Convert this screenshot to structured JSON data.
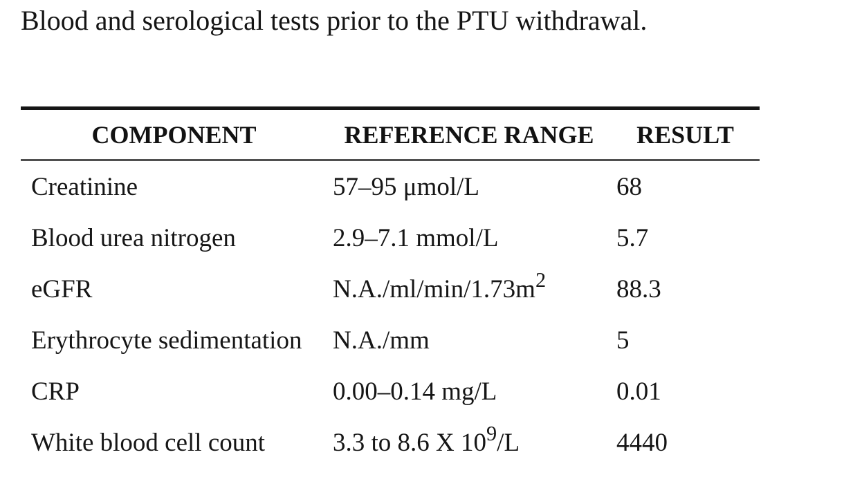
{
  "page": {
    "title": "Blood and serological tests prior to the PTU withdrawal."
  },
  "table": {
    "columns": [
      "COMPONENT",
      "REFERENCE RANGE",
      "RESULT"
    ],
    "rows": [
      {
        "component": "Creatinine",
        "rr_base": "57–95 μmol/L",
        "result": "68"
      },
      {
        "component": "Blood urea nitrogen",
        "rr_base": "2.9–7.1 mmol/L",
        "result": "5.7"
      },
      {
        "component": "eGFR",
        "rr_base": "N.A./ml/min/1.73m",
        "rr_sup": "2",
        "result": "88.3"
      },
      {
        "component": "Erythrocyte sedimentation",
        "rr_base": "N.A./mm",
        "result": "5"
      },
      {
        "component": "CRP",
        "rr_base": "0.00–0.14 mg/L",
        "result": "0.01"
      },
      {
        "component": "White blood cell count",
        "rr_base": "3.3 to 8.6 X 10",
        "rr_sup": "9",
        "rr_tail": "/L",
        "result": "4440"
      }
    ]
  }
}
